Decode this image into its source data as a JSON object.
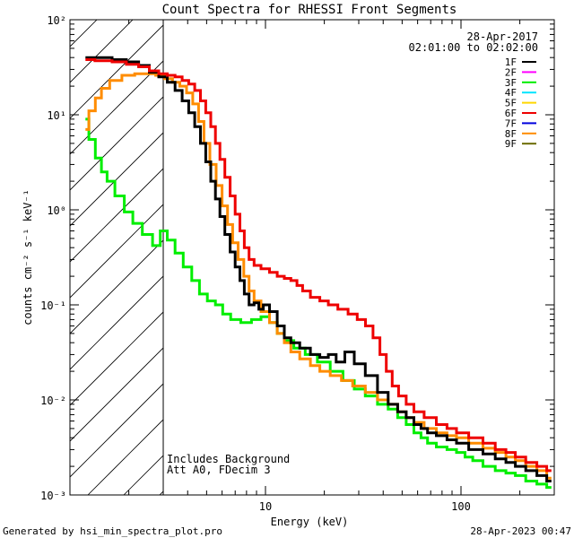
{
  "chart_data": {
    "type": "line",
    "title": "Count Spectra for RHESSI Front Segments",
    "xlabel": "Energy (keV)",
    "ylabel": "counts cm⁻² s⁻¹ keV⁻¹",
    "xscale": "log",
    "yscale": "log",
    "xlim": [
      1,
      300
    ],
    "ylim": [
      0.001,
      100
    ],
    "x_ticks": [
      {
        "value": 10,
        "label": "10"
      },
      {
        "value": 100,
        "label": "100"
      }
    ],
    "y_ticks": [
      {
        "value": 100,
        "label": "10²"
      },
      {
        "value": 10,
        "label": "10¹"
      },
      {
        "value": 1,
        "label": "10⁰"
      },
      {
        "value": 0.1,
        "label": "10⁻¹"
      },
      {
        "value": 0.01,
        "label": "10⁻²"
      },
      {
        "value": 0.001,
        "label": "10⁻³"
      }
    ],
    "hatched_region": [
      1,
      3
    ],
    "date": "28-Apr-2017",
    "time_range": "02:01:00 to 02:02:00",
    "annotations": [
      "Includes Background",
      "Att A0, FDecim 3"
    ],
    "legend": [
      {
        "name": "1F",
        "color": "#000000"
      },
      {
        "name": "2F",
        "color": "#ff00ff"
      },
      {
        "name": "3F",
        "color": "#00ee00"
      },
      {
        "name": "4F",
        "color": "#00e5ff"
      },
      {
        "name": "5F",
        "color": "#ffd700"
      },
      {
        "name": "6F",
        "color": "#ee0000"
      },
      {
        "name": "7F",
        "color": "#0000dd"
      },
      {
        "name": "8F",
        "color": "#ff8c00"
      },
      {
        "name": "9F",
        "color": "#6b6b00"
      }
    ],
    "series": [
      {
        "name": "3F",
        "color": "#00ee00",
        "points": [
          [
            1.2,
            9.0
          ],
          [
            1.3,
            5.5
          ],
          [
            1.4,
            3.5
          ],
          [
            1.5,
            2.5
          ],
          [
            1.6,
            2.0
          ],
          [
            1.8,
            1.4
          ],
          [
            2.0,
            0.95
          ],
          [
            2.2,
            0.72
          ],
          [
            2.5,
            0.55
          ],
          [
            2.8,
            0.42
          ],
          [
            3.0,
            0.6
          ],
          [
            3.3,
            0.48
          ],
          [
            3.6,
            0.35
          ],
          [
            4.0,
            0.25
          ],
          [
            4.4,
            0.18
          ],
          [
            4.8,
            0.13
          ],
          [
            5.3,
            0.11
          ],
          [
            5.8,
            0.1
          ],
          [
            6.3,
            0.08
          ],
          [
            7.0,
            0.07
          ],
          [
            8.0,
            0.065
          ],
          [
            9.0,
            0.07
          ],
          [
            10.0,
            0.075
          ],
          [
            11.0,
            0.065
          ],
          [
            12.0,
            0.05
          ],
          [
            13.0,
            0.042
          ],
          [
            15.0,
            0.035
          ],
          [
            17.0,
            0.03
          ],
          [
            20.0,
            0.025
          ],
          [
            23.0,
            0.02
          ],
          [
            27.0,
            0.016
          ],
          [
            30.0,
            0.013
          ],
          [
            35.0,
            0.011
          ],
          [
            40.0,
            0.009
          ],
          [
            45.0,
            0.008
          ],
          [
            50.0,
            0.0065
          ],
          [
            55.0,
            0.0055
          ],
          [
            60.0,
            0.0045
          ],
          [
            65.0,
            0.004
          ],
          [
            70.0,
            0.0035
          ],
          [
            80.0,
            0.0032
          ],
          [
            90.0,
            0.003
          ],
          [
            100.0,
            0.0028
          ],
          [
            110.0,
            0.0025
          ],
          [
            120.0,
            0.0023
          ],
          [
            140.0,
            0.002
          ],
          [
            160.0,
            0.0018
          ],
          [
            180.0,
            0.0017
          ],
          [
            200.0,
            0.0016
          ],
          [
            230.0,
            0.0014
          ],
          [
            260.0,
            0.0013
          ],
          [
            290.0,
            0.0012
          ]
        ]
      },
      {
        "name": "8F",
        "color": "#ff8c00",
        "points": [
          [
            1.2,
            7.0
          ],
          [
            1.3,
            11.0
          ],
          [
            1.4,
            15.0
          ],
          [
            1.5,
            19.0
          ],
          [
            1.7,
            23.0
          ],
          [
            2.0,
            26.0
          ],
          [
            2.3,
            27.0
          ],
          [
            2.6,
            27.0
          ],
          [
            2.9,
            26.0
          ],
          [
            3.2,
            24.0
          ],
          [
            3.5,
            22.0
          ],
          [
            3.8,
            20.0
          ],
          [
            4.1,
            17.0
          ],
          [
            4.4,
            13.0
          ],
          [
            4.7,
            8.5
          ],
          [
            5.0,
            5.0
          ],
          [
            5.4,
            3.0
          ],
          [
            5.8,
            1.8
          ],
          [
            6.2,
            1.1
          ],
          [
            6.6,
            0.7
          ],
          [
            7.0,
            0.45
          ],
          [
            7.5,
            0.3
          ],
          [
            8.0,
            0.2
          ],
          [
            8.5,
            0.14
          ],
          [
            9.0,
            0.11
          ],
          [
            10.0,
            0.085
          ],
          [
            11.0,
            0.065
          ],
          [
            12.0,
            0.05
          ],
          [
            13.0,
            0.04
          ],
          [
            14.0,
            0.032
          ],
          [
            16.0,
            0.027
          ],
          [
            18.0,
            0.023
          ],
          [
            20.0,
            0.02
          ],
          [
            23.0,
            0.018
          ],
          [
            26.0,
            0.016
          ],
          [
            30.0,
            0.014
          ],
          [
            35.0,
            0.012
          ],
          [
            40.0,
            0.01
          ],
          [
            45.0,
            0.009
          ],
          [
            50.0,
            0.0075
          ],
          [
            55.0,
            0.0065
          ],
          [
            60.0,
            0.0058
          ],
          [
            70.0,
            0.005
          ],
          [
            80.0,
            0.0045
          ],
          [
            90.0,
            0.0042
          ],
          [
            100.0,
            0.004
          ],
          [
            120.0,
            0.0035
          ],
          [
            140.0,
            0.0031
          ],
          [
            160.0,
            0.0028
          ],
          [
            180.0,
            0.0025
          ],
          [
            200.0,
            0.0023
          ],
          [
            230.0,
            0.002
          ],
          [
            260.0,
            0.0018
          ],
          [
            290.0,
            0.0015
          ]
        ]
      },
      {
        "name": "1F",
        "color": "#000000",
        "points": [
          [
            1.2,
            40.0
          ],
          [
            1.5,
            40.0
          ],
          [
            1.8,
            38.0
          ],
          [
            2.1,
            36.0
          ],
          [
            2.4,
            33.0
          ],
          [
            2.7,
            28.0
          ],
          [
            3.0,
            25.0
          ],
          [
            3.3,
            22.0
          ],
          [
            3.6,
            18.0
          ],
          [
            3.9,
            14.0
          ],
          [
            4.2,
            10.5
          ],
          [
            4.5,
            7.5
          ],
          [
            4.8,
            5.0
          ],
          [
            5.1,
            3.2
          ],
          [
            5.4,
            2.0
          ],
          [
            5.7,
            1.3
          ],
          [
            6.0,
            0.85
          ],
          [
            6.4,
            0.55
          ],
          [
            6.8,
            0.36
          ],
          [
            7.2,
            0.25
          ],
          [
            7.6,
            0.18
          ],
          [
            8.0,
            0.13
          ],
          [
            8.5,
            0.1
          ],
          [
            9.0,
            0.105
          ],
          [
            9.5,
            0.09
          ],
          [
            10.0,
            0.1
          ],
          [
            11.0,
            0.085
          ],
          [
            12.0,
            0.06
          ],
          [
            13.0,
            0.045
          ],
          [
            14.0,
            0.04
          ],
          [
            16.0,
            0.035
          ],
          [
            18.0,
            0.03
          ],
          [
            20.0,
            0.028
          ],
          [
            22.0,
            0.03
          ],
          [
            24.0,
            0.025
          ],
          [
            27.0,
            0.032
          ],
          [
            30.0,
            0.024
          ],
          [
            35.0,
            0.018
          ],
          [
            40.0,
            0.012
          ],
          [
            45.0,
            0.009
          ],
          [
            50.0,
            0.0075
          ],
          [
            55.0,
            0.0065
          ],
          [
            60.0,
            0.0055
          ],
          [
            65.0,
            0.005
          ],
          [
            70.0,
            0.0045
          ],
          [
            80.0,
            0.0042
          ],
          [
            90.0,
            0.0038
          ],
          [
            100.0,
            0.0035
          ],
          [
            120.0,
            0.003
          ],
          [
            140.0,
            0.0027
          ],
          [
            160.0,
            0.0024
          ],
          [
            180.0,
            0.0022
          ],
          [
            200.0,
            0.002
          ],
          [
            230.0,
            0.0018
          ],
          [
            260.0,
            0.0016
          ],
          [
            290.0,
            0.0014
          ]
        ]
      },
      {
        "name": "6F",
        "color": "#ee0000",
        "points": [
          [
            1.2,
            38.0
          ],
          [
            1.5,
            37.0
          ],
          [
            1.8,
            36.0
          ],
          [
            2.1,
            34.0
          ],
          [
            2.4,
            32.0
          ],
          [
            2.7,
            29.0
          ],
          [
            3.0,
            27.0
          ],
          [
            3.3,
            26.0
          ],
          [
            3.6,
            25.0
          ],
          [
            3.9,
            23.0
          ],
          [
            4.2,
            21.0
          ],
          [
            4.5,
            18.0
          ],
          [
            4.8,
            14.0
          ],
          [
            5.1,
            10.5
          ],
          [
            5.4,
            7.5
          ],
          [
            5.7,
            5.0
          ],
          [
            6.0,
            3.4
          ],
          [
            6.4,
            2.2
          ],
          [
            6.8,
            1.4
          ],
          [
            7.2,
            0.9
          ],
          [
            7.6,
            0.6
          ],
          [
            8.0,
            0.4
          ],
          [
            8.5,
            0.3
          ],
          [
            9.0,
            0.26
          ],
          [
            10.0,
            0.24
          ],
          [
            11.0,
            0.22
          ],
          [
            12.0,
            0.2
          ],
          [
            13.0,
            0.19
          ],
          [
            14.0,
            0.18
          ],
          [
            15.0,
            0.16
          ],
          [
            16.0,
            0.14
          ],
          [
            18.0,
            0.12
          ],
          [
            20.0,
            0.11
          ],
          [
            22.0,
            0.1
          ],
          [
            25.0,
            0.09
          ],
          [
            28.0,
            0.08
          ],
          [
            31.0,
            0.07
          ],
          [
            34.0,
            0.06
          ],
          [
            37.0,
            0.045
          ],
          [
            40.0,
            0.03
          ],
          [
            43.0,
            0.02
          ],
          [
            46.0,
            0.014
          ],
          [
            50.0,
            0.011
          ],
          [
            55.0,
            0.009
          ],
          [
            60.0,
            0.0075
          ],
          [
            70.0,
            0.0065
          ],
          [
            80.0,
            0.0055
          ],
          [
            90.0,
            0.005
          ],
          [
            100.0,
            0.0045
          ],
          [
            120.0,
            0.004
          ],
          [
            140.0,
            0.0035
          ],
          [
            160.0,
            0.003
          ],
          [
            180.0,
            0.0028
          ],
          [
            200.0,
            0.0025
          ],
          [
            230.0,
            0.0022
          ],
          [
            260.0,
            0.002
          ],
          [
            290.0,
            0.0018
          ]
        ]
      }
    ]
  },
  "footer": {
    "left": "Generated by hsi_min_spectra_plot.pro",
    "right": "28-Apr-2023 00:47"
  }
}
